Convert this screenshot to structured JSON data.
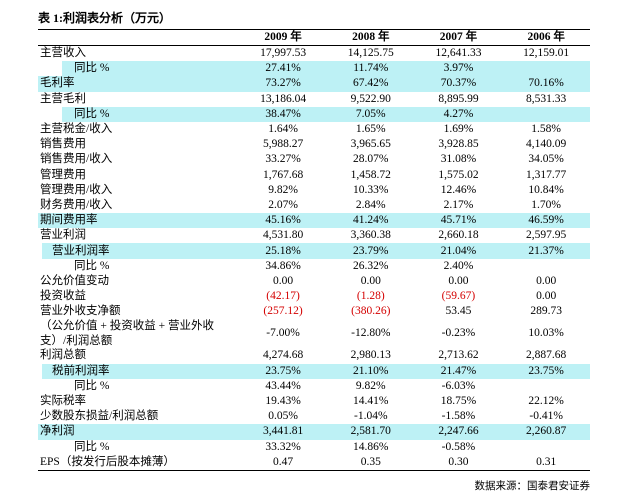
{
  "title": "表 1:利润表分析（万元）",
  "table": {
    "headers": [
      "2009 年",
      "2008 年",
      "2007 年",
      "2006 年"
    ],
    "rows": [
      {
        "label": "主营收入",
        "values": [
          "17,997.53",
          "14,125.75",
          "12,641.33",
          "12,159.01"
        ]
      },
      {
        "label": "同比 %",
        "values": [
          "27.41%",
          "11.74%",
          "3.97%",
          null
        ],
        "highlight": true
      },
      {
        "label": "毛利率",
        "values": [
          "73.27%",
          "67.42%",
          "70.37%",
          "70.16%"
        ],
        "highlight": true
      },
      {
        "label": "主营毛利",
        "values": [
          "13,186.04",
          "9,522.90",
          "8,895.99",
          "8,531.33"
        ]
      },
      {
        "label": "同比 %",
        "values": [
          "38.47%",
          "7.05%",
          "4.27%",
          null
        ],
        "highlight": true
      },
      {
        "label": "主营税金/收入",
        "values": [
          "1.64%",
          "1.65%",
          "1.69%",
          "1.58%"
        ]
      },
      {
        "label": "销售费用",
        "values": [
          "5,988.27",
          "3,965.65",
          "3,928.85",
          "4,140.09"
        ]
      },
      {
        "label": "销售费用/收入",
        "values": [
          "33.27%",
          "28.07%",
          "31.08%",
          "34.05%"
        ]
      },
      {
        "label": "管理费用",
        "values": [
          "1,767.68",
          "1,458.72",
          "1,575.02",
          "1,317.77"
        ]
      },
      {
        "label": "管理费用/收入",
        "values": [
          "9.82%",
          "10.33%",
          "12.46%",
          "10.84%"
        ]
      },
      {
        "label": "财务费用/收入",
        "values": [
          "2.07%",
          "2.84%",
          "2.17%",
          "1.70%"
        ]
      },
      {
        "label": "期间费用率",
        "values": [
          "45.16%",
          "41.24%",
          "45.71%",
          "46.59%"
        ],
        "highlight": true
      },
      {
        "label": "营业利润",
        "values": [
          "4,531.80",
          "3,360.38",
          "2,660.18",
          "2,597.95"
        ]
      },
      {
        "label": "营业利润率",
        "values": [
          "25.18%",
          "23.79%",
          "21.04%",
          "21.37%"
        ],
        "highlight": true
      },
      {
        "label": "同比 %",
        "values": [
          "34.86%",
          "26.32%",
          "2.40%",
          null
        ]
      },
      {
        "label": "公允价值变动",
        "values": [
          "0.00",
          "0.00",
          "0.00",
          "0.00"
        ]
      },
      {
        "label": "投资收益",
        "values": [
          "(42.17)",
          "(1.28)",
          "(59.67)",
          "0.00"
        ],
        "text_colors": [
          "#d40000",
          "#d40000",
          "#d40000",
          null
        ]
      },
      {
        "label": "营业外收支净额",
        "values": [
          "(257.12)",
          "(380.26)",
          "53.45",
          "289.73"
        ],
        "text_colors": [
          "#d40000",
          "#d40000",
          null,
          null
        ]
      },
      {
        "label": "（公允价值 + 投资收益 + 营业外收支）/利润总额",
        "values": [
          "-7.00%",
          "-12.80%",
          "-0.23%",
          "10.03%"
        ]
      },
      {
        "label": "利润总额",
        "values": [
          "4,274.68",
          "2,980.13",
          "2,713.62",
          "2,887.68"
        ]
      },
      {
        "label": "税前利润率",
        "values": [
          "23.75%",
          "21.10%",
          "21.47%",
          "23.75%"
        ],
        "highlight": true
      },
      {
        "label": "同比 %",
        "values": [
          "43.44%",
          "9.82%",
          "-6.03%",
          null
        ]
      },
      {
        "label": "实际税率",
        "values": [
          "19.43%",
          "14.41%",
          "18.75%",
          "22.12%"
        ]
      },
      {
        "label": "少数股东损益/利润总额",
        "values": [
          "0.05%",
          "-1.04%",
          "-1.58%",
          "-0.41%"
        ]
      },
      {
        "label": "净利润",
        "values": [
          "3,441.81",
          "2,581.70",
          "2,247.66",
          "2,260.87"
        ],
        "highlight": true
      },
      {
        "label": "同比 %",
        "values": [
          "33.32%",
          "14.86%",
          "-0.58%",
          null
        ]
      },
      {
        "label": "EPS（按发行后股本摊薄）",
        "values": [
          "0.47",
          "0.35",
          "0.30",
          "0.31"
        ]
      }
    ]
  },
  "source": "数据来源：国泰君安证券",
  "highlight_color": "#bdf1f5"
}
